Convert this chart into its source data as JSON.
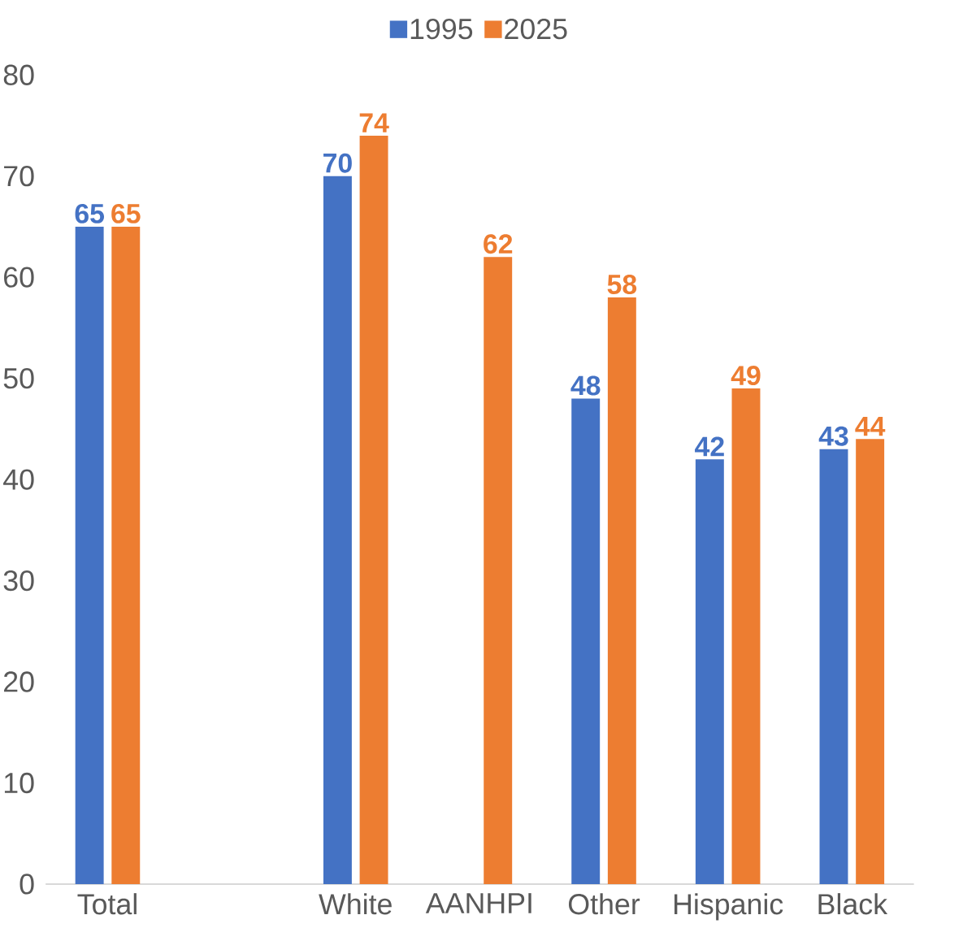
{
  "chart_data": {
    "type": "bar",
    "categories": [
      "Total",
      null,
      "White",
      "AANHPI",
      "Other",
      "Hispanic",
      "Black"
    ],
    "series": [
      {
        "name": "1995",
        "color": "#4472c4",
        "values": [
          65,
          null,
          70,
          null,
          48,
          42,
          43
        ]
      },
      {
        "name": "2025",
        "color": "#ed7d31",
        "values": [
          65,
          null,
          74,
          62,
          58,
          49,
          44
        ]
      }
    ],
    "ylim": [
      0,
      80
    ],
    "yticks": [
      0,
      10,
      20,
      30,
      40,
      50,
      60,
      70,
      80
    ],
    "data_labels": true,
    "legend": "top",
    "grid": false
  }
}
